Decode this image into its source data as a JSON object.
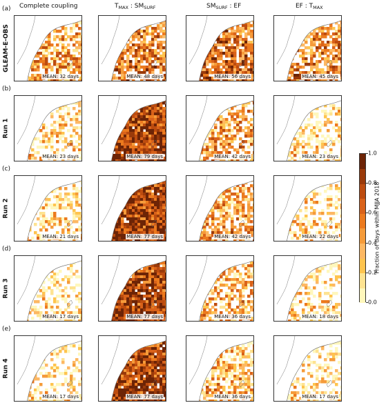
{
  "column_headers": [
    {
      "main": "Complete coupling",
      "sub": ""
    },
    {
      "main": "T",
      "sub": "MAX",
      "sep": " : SM",
      "sub2": "SURF"
    },
    {
      "main": "SM",
      "sub": "SURF",
      "sep": " : EF",
      "sub2": ""
    },
    {
      "main": "EF : T",
      "sub": "MAX",
      "sep": "",
      "sub2": ""
    }
  ],
  "rows": [
    {
      "letter": "(a)",
      "label": "GLEAM-E-OBS",
      "means": [
        "MEAN: 32 days",
        "MEAN: 48 days",
        "MEAN: 56 days",
        "MEAN: 45 days"
      ],
      "intensity": [
        0.42,
        0.55,
        0.62,
        0.52
      ]
    },
    {
      "letter": "(b)",
      "label": "Run 1",
      "means": [
        "MEAN: 23 days",
        "MEAN: 79 days",
        "MEAN: 42 days",
        "MEAN: 23 days"
      ],
      "intensity": [
        0.22,
        0.8,
        0.42,
        0.22
      ]
    },
    {
      "letter": "(c)",
      "label": "Run 2",
      "means": [
        "MEAN: 21 days",
        "MEAN: 77 days",
        "MEAN: 42 days",
        "MEAN: 22 days"
      ],
      "intensity": [
        0.2,
        0.78,
        0.42,
        0.2
      ]
    },
    {
      "letter": "(d)",
      "label": "Run 3",
      "means": [
        "MEAN: 17 days",
        "MEAN: 77 days",
        "MEAN: 36 days",
        "MEAN: 18 days"
      ],
      "intensity": [
        0.15,
        0.78,
        0.36,
        0.16
      ]
    },
    {
      "letter": "(e)",
      "label": "Run 4",
      "means": [
        "MEAN: 17 days",
        "MEAN: 77 days",
        "MEAN: 36 days",
        "MEAN: 17 days"
      ],
      "intensity": [
        0.15,
        0.78,
        0.36,
        0.15
      ]
    }
  ],
  "colorbar": {
    "label": "Fraction of days within MJJA 2018",
    "ticks": [
      "1.0",
      "0.8",
      "0.6",
      "0.4",
      "0.2",
      "0.0"
    ],
    "colors": [
      "#fff7bc",
      "#fee391",
      "#fec44f",
      "#fdb863",
      "#f59b3a",
      "#ec7a1e",
      "#d9621a",
      "#bd4c0f",
      "#9a3a0a",
      "#6d2406"
    ]
  }
}
